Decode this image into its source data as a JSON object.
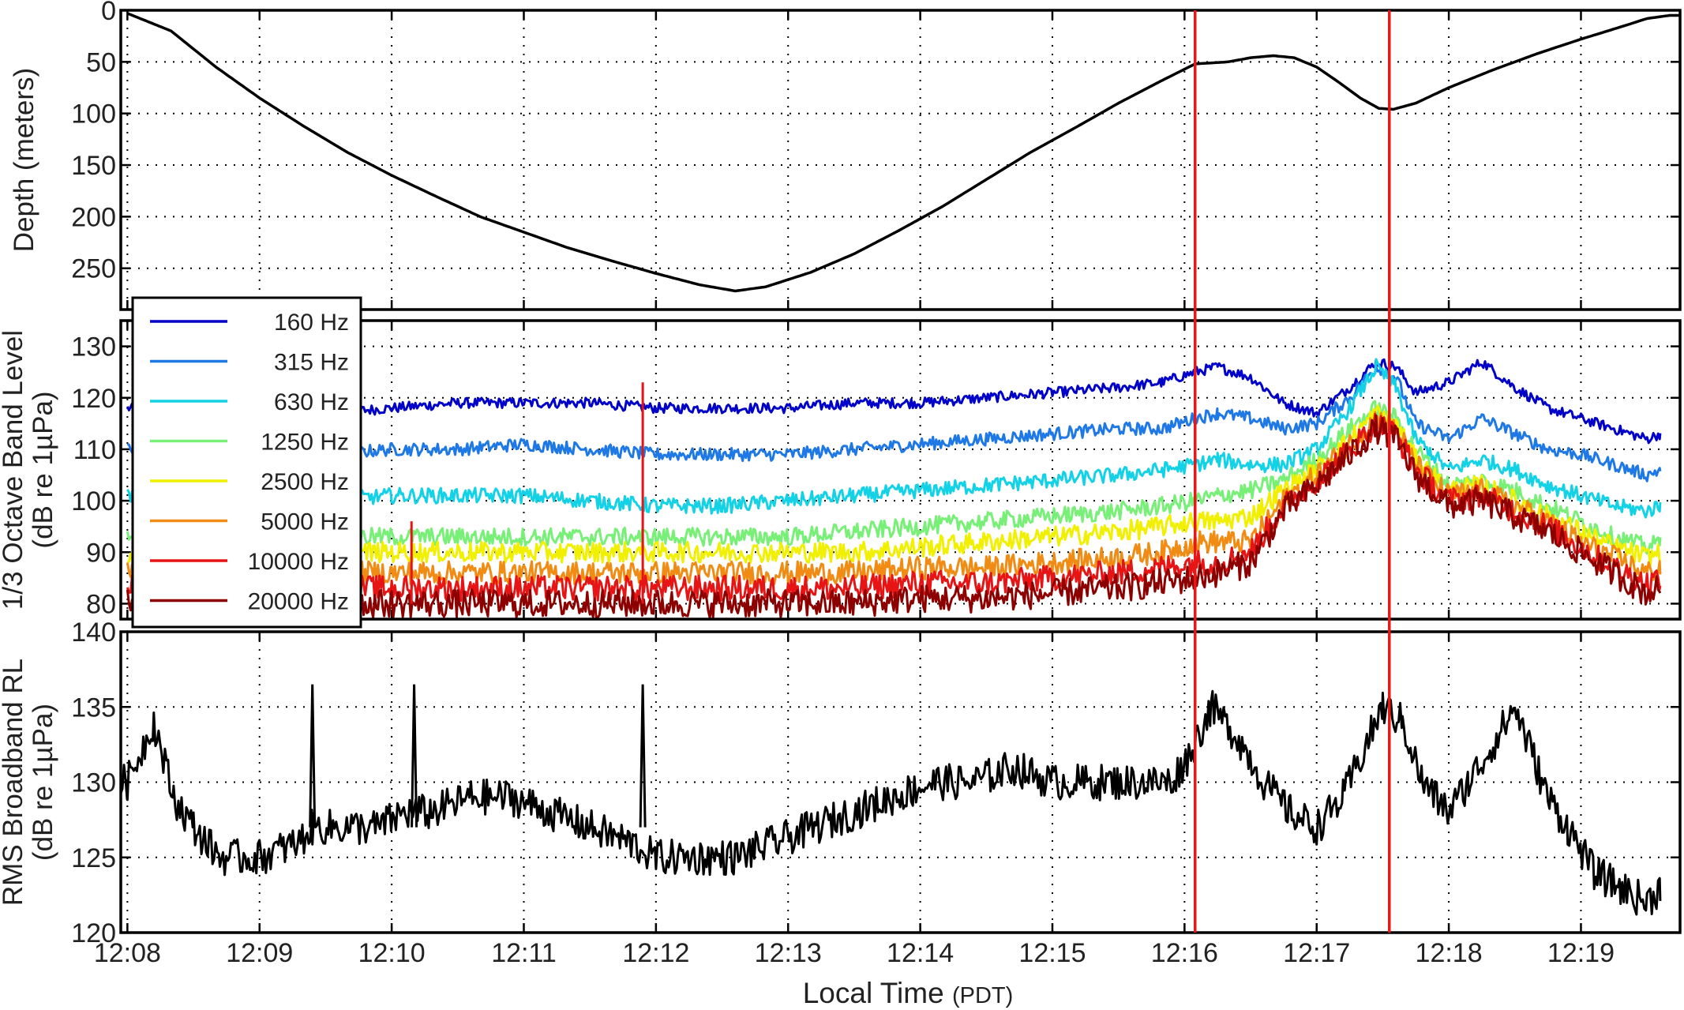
{
  "chart_data": [
    {
      "type": "line",
      "ylabel": "Depth (meters)",
      "ylim": [
        0,
        290
      ],
      "y_reversed": true,
      "y_ticks": [
        "0",
        "50",
        "100",
        "150",
        "200",
        "250"
      ],
      "grid": true,
      "series": [
        {
          "color": "#000000",
          "x": [
            8.0,
            8.33,
            8.67,
            9.0,
            9.33,
            9.67,
            10.0,
            10.33,
            10.67,
            11.0,
            11.33,
            11.67,
            12.0,
            12.33,
            12.6,
            12.83,
            13.17,
            13.5,
            13.83,
            14.17,
            14.5,
            14.83,
            15.17,
            15.5,
            15.83,
            16.08,
            16.33,
            16.5,
            16.67,
            16.83,
            17.0,
            17.17,
            17.33,
            17.47,
            17.58,
            17.75,
            18.0,
            18.33,
            18.67,
            19.0,
            19.33,
            19.5,
            19.67,
            19.75
          ],
          "y": [
            3,
            20,
            55,
            85,
            112,
            138,
            160,
            180,
            200,
            215,
            230,
            243,
            255,
            266,
            272,
            268,
            254,
            236,
            214,
            190,
            164,
            138,
            114,
            90,
            68,
            52,
            50,
            46,
            44,
            46,
            55,
            70,
            85,
            95,
            96,
            90,
            75,
            58,
            42,
            28,
            15,
            8,
            5,
            5
          ]
        }
      ]
    },
    {
      "type": "line",
      "ylabel": "1/3 Octave Band Level\n(dB re 1µPa)",
      "ylim": [
        77,
        135
      ],
      "y_ticks": [
        "80",
        "90",
        "100",
        "110",
        "120",
        "130"
      ],
      "grid": true,
      "legend": "top-left",
      "series": [
        {
          "name": "160 Hz",
          "color": "#0000c8",
          "x": [
            8.0,
            8.5,
            9.0,
            9.5,
            10.0,
            10.5,
            11.0,
            11.5,
            12.0,
            12.5,
            13.0,
            13.5,
            14.0,
            14.5,
            15.0,
            15.5,
            15.83,
            16.08,
            16.25,
            16.5,
            16.75,
            17.0,
            17.25,
            17.45,
            17.6,
            17.75,
            18.0,
            18.25,
            18.5,
            18.75,
            19.0,
            19.25,
            19.5,
            19.6
          ],
          "y": [
            118,
            117,
            117,
            117,
            118,
            119,
            119,
            119,
            118,
            118,
            118,
            119,
            119,
            120,
            121,
            122,
            123,
            125,
            126,
            124,
            119,
            117,
            122,
            127,
            126,
            121,
            123,
            127,
            122,
            118,
            116,
            114,
            112,
            113
          ]
        },
        {
          "name": "315 Hz",
          "color": "#1e78e6",
          "x": [
            8.0,
            8.5,
            9.0,
            9.5,
            10.0,
            10.5,
            11.0,
            11.5,
            12.0,
            12.5,
            13.0,
            13.5,
            14.0,
            14.5,
            15.0,
            15.5,
            15.83,
            16.08,
            16.25,
            16.5,
            16.75,
            17.0,
            17.25,
            17.45,
            17.6,
            17.75,
            18.0,
            18.25,
            18.5,
            18.75,
            19.0,
            19.25,
            19.5,
            19.6
          ],
          "y": [
            110,
            110,
            109,
            109,
            110,
            110,
            111,
            110,
            109,
            109,
            109,
            110,
            111,
            112,
            113,
            114,
            114,
            116,
            117,
            116,
            114,
            115,
            120,
            126,
            124,
            115,
            112,
            116,
            113,
            110,
            109,
            107,
            105,
            106
          ]
        },
        {
          "name": "630 Hz",
          "color": "#14d2e6",
          "x": [
            8.0,
            8.5,
            9.0,
            9.5,
            10.0,
            10.5,
            11.0,
            11.5,
            12.0,
            12.5,
            13.0,
            13.5,
            14.0,
            14.5,
            15.0,
            15.5,
            15.83,
            16.08,
            16.25,
            16.5,
            16.75,
            17.0,
            17.25,
            17.45,
            17.6,
            17.75,
            18.0,
            18.25,
            18.5,
            18.75,
            19.0,
            19.25,
            19.5,
            19.6
          ],
          "y": [
            101,
            101,
            101,
            100,
            101,
            101,
            101,
            100,
            99,
            99,
            100,
            101,
            102,
            103,
            104,
            105,
            106,
            107,
            108,
            107,
            107,
            110,
            118,
            126,
            122,
            112,
            106,
            108,
            106,
            103,
            101,
            99,
            98,
            99
          ]
        },
        {
          "name": "1250 Hz",
          "color": "#78f078",
          "x": [
            8.0,
            8.5,
            9.0,
            9.5,
            10.0,
            10.5,
            11.0,
            11.5,
            12.0,
            12.5,
            13.0,
            13.5,
            14.0,
            14.5,
            15.0,
            15.5,
            15.83,
            16.08,
            16.25,
            16.5,
            16.75,
            17.0,
            17.25,
            17.45,
            17.6,
            17.75,
            18.0,
            18.25,
            18.5,
            18.75,
            19.0,
            19.25,
            19.5,
            19.6
          ],
          "y": [
            94,
            94,
            94,
            93,
            93,
            93,
            93,
            93,
            93,
            93,
            93,
            94,
            95,
            96,
            97,
            98,
            99,
            100,
            101,
            102,
            104,
            108,
            114,
            118,
            116,
            110,
            103,
            104,
            102,
            99,
            96,
            93,
            91,
            92
          ]
        },
        {
          "name": "2500 Hz",
          "color": "#f0f000",
          "x": [
            8.0,
            8.5,
            9.0,
            9.5,
            10.0,
            10.5,
            11.0,
            11.5,
            12.0,
            12.5,
            13.0,
            13.5,
            14.0,
            14.5,
            15.0,
            15.5,
            15.83,
            16.08,
            16.25,
            16.5,
            16.75,
            17.0,
            17.25,
            17.45,
            17.6,
            17.75,
            18.0,
            18.25,
            18.5,
            18.75,
            19.0,
            19.25,
            19.5,
            19.6
          ],
          "y": [
            90,
            90,
            90,
            90,
            90,
            90,
            90,
            90,
            90,
            90,
            90,
            90,
            91,
            92,
            93,
            94,
            95,
            96,
            96,
            97,
            102,
            106,
            112,
            117,
            115,
            108,
            102,
            103,
            100,
            97,
            94,
            91,
            89,
            90
          ]
        },
        {
          "name": "5000 Hz",
          "color": "#f08c14",
          "x": [
            8.0,
            8.5,
            9.0,
            9.5,
            10.0,
            10.5,
            11.0,
            11.5,
            12.0,
            12.5,
            13.0,
            13.5,
            14.0,
            14.5,
            15.0,
            15.5,
            15.83,
            16.08,
            16.25,
            16.5,
            16.75,
            17.0,
            17.25,
            17.45,
            17.6,
            17.75,
            18.0,
            18.25,
            18.5,
            18.75,
            19.0,
            19.25,
            19.5,
            19.6
          ],
          "y": [
            86,
            86,
            86,
            86,
            86,
            86,
            86,
            86,
            86,
            86,
            86,
            86,
            87,
            87,
            88,
            89,
            90,
            92,
            92,
            92,
            100,
            105,
            111,
            116,
            114,
            107,
            101,
            102,
            99,
            96,
            92,
            89,
            86,
            87
          ]
        },
        {
          "name": "10000 Hz",
          "color": "#e61414",
          "x": [
            8.0,
            8.5,
            9.0,
            9.5,
            10.0,
            10.5,
            11.0,
            11.5,
            12.0,
            12.5,
            13.0,
            13.5,
            14.0,
            14.5,
            15.0,
            15.5,
            15.83,
            16.08,
            16.25,
            16.5,
            16.75,
            17.0,
            17.25,
            17.45,
            17.6,
            17.75,
            18.0,
            18.25,
            18.5,
            18.75,
            19.0,
            19.25,
            19.5,
            19.6
          ],
          "y": [
            83,
            83,
            83,
            83,
            83,
            83,
            83,
            83,
            83,
            83,
            83,
            83,
            84,
            84,
            85,
            86,
            87,
            88,
            88,
            90,
            99,
            104,
            110,
            115,
            113,
            106,
            100,
            101,
            98,
            95,
            91,
            87,
            84,
            85
          ]
        },
        {
          "name": "20000 Hz",
          "color": "#8c0000",
          "x": [
            8.0,
            8.5,
            9.0,
            9.5,
            10.0,
            10.5,
            11.0,
            11.5,
            12.0,
            12.5,
            13.0,
            13.5,
            14.0,
            14.5,
            15.0,
            15.5,
            15.83,
            16.08,
            16.25,
            16.5,
            16.75,
            17.0,
            17.25,
            17.45,
            17.6,
            17.75,
            18.0,
            18.25,
            18.5,
            18.75,
            19.0,
            19.25,
            19.5,
            19.6
          ],
          "y": [
            80,
            80,
            80,
            80,
            80,
            80,
            80,
            80,
            80,
            80,
            80,
            80,
            81,
            81,
            82,
            83,
            84,
            85,
            86,
            88,
            98,
            103,
            109,
            114,
            112,
            105,
            99,
            100,
            97,
            94,
            90,
            86,
            82,
            83
          ]
        }
      ]
    },
    {
      "type": "line",
      "ylabel": "RMS Broadband RL\n(dB re 1µPa)",
      "ylim": [
        120,
        140
      ],
      "y_ticks": [
        "120",
        "125",
        "130",
        "135",
        "140"
      ],
      "grid": true,
      "series": [
        {
          "color": "#000000",
          "x": [
            7.95,
            8.0,
            8.2,
            8.35,
            8.5,
            8.7,
            9.0,
            9.3,
            9.4,
            9.6,
            9.9,
            10.1,
            10.3,
            10.6,
            10.9,
            11.2,
            11.5,
            11.8,
            12.0,
            12.3,
            12.6,
            12.9,
            13.2,
            13.5,
            13.8,
            14.1,
            14.4,
            14.7,
            15.0,
            15.3,
            15.6,
            15.9,
            16.05,
            16.2,
            16.4,
            16.6,
            16.8,
            17.0,
            17.2,
            17.4,
            17.5,
            17.65,
            17.8,
            18.0,
            18.15,
            18.3,
            18.5,
            18.75,
            18.9,
            19.1,
            19.3,
            19.5,
            19.6
          ],
          "y": [
            130,
            130,
            134,
            129,
            127,
            125,
            125,
            126,
            127,
            127,
            127,
            128,
            128,
            129,
            129,
            128,
            127,
            126,
            125,
            125,
            125,
            126,
            127,
            128,
            129,
            130,
            130,
            131,
            130,
            130,
            130,
            130,
            132,
            135,
            133,
            130,
            128,
            127,
            129,
            133,
            135,
            134,
            130,
            128,
            130,
            132,
            135,
            129,
            127,
            124,
            123,
            122,
            123
          ]
        }
      ]
    }
  ],
  "spikes": {
    "broadband": [
      {
        "x": 9.4,
        "y": 136.5
      },
      {
        "x": 10.17,
        "y": 136.5
      },
      {
        "x": 11.9,
        "y": 136.5
      }
    ],
    "bands": [
      {
        "x": 10.15,
        "y": 96
      },
      {
        "x": 11.9,
        "y": 123
      }
    ]
  },
  "red_markers": [
    16.08,
    17.55
  ],
  "x_axis": {
    "xlim": [
      7.95,
      19.75
    ],
    "ticks": [
      8,
      9,
      10,
      11,
      12,
      13,
      14,
      15,
      16,
      17,
      18,
      19
    ],
    "tick_labels": [
      "12:08",
      "12:09",
      "12:10",
      "12:11",
      "12:12",
      "12:13",
      "12:14",
      "12:15",
      "12:16",
      "12:17",
      "12:18",
      "12:19"
    ],
    "label": "Local Time",
    "label_suffix": "(PDT)"
  }
}
